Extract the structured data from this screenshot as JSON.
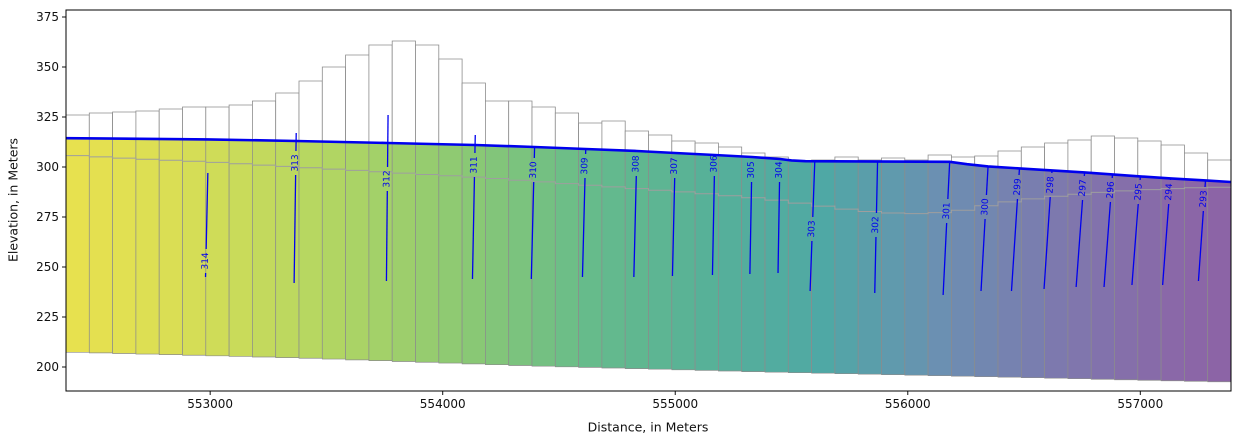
{
  "chart_data": {
    "type": "area",
    "title": "",
    "xlabel": "Distance, in Meters",
    "ylabel": "Elevation, in Meters",
    "xlim": [
      552380,
      557390
    ],
    "ylim": [
      188,
      378.5
    ],
    "xticks": [
      553000,
      554000,
      555000,
      556000,
      557000
    ],
    "yticks": [
      200,
      225,
      250,
      275,
      300,
      325,
      350,
      375
    ],
    "grid": false,
    "legend": "none",
    "description": "Groundwater model cross-section: colored saturated cells (yellow high head to purple low head), white unsaturated cells above the blue water table, blue head contours labeled 293-314",
    "colors": {
      "contour": "#0000ee",
      "water_table": "#0000ee",
      "cell_edge": "#8c8c8c",
      "boundary_line": "#9e9e9e",
      "frame": "#000000",
      "unsaturated_fill": "#ffffff"
    },
    "colormap": [
      [
        "0",
        "#8d63a5"
      ],
      [
        "0.05",
        "#8a68a8"
      ],
      [
        "0.15",
        "#7d79ae"
      ],
      [
        "0.25",
        "#6b90b2"
      ],
      [
        "0.35",
        "#4fa8a5"
      ],
      [
        "0.45",
        "#57b198"
      ],
      [
        "0.55",
        "#66bb8b"
      ],
      [
        "0.66",
        "#8cc973"
      ],
      [
        "0.78",
        "#b4d662"
      ],
      [
        "0.9",
        "#d8de55"
      ],
      [
        "1",
        "#e9e14e"
      ]
    ],
    "n_columns": 50,
    "land_surface": [
      326,
      327,
      327.5,
      328,
      329,
      330,
      330,
      331,
      333,
      337,
      343,
      350,
      356,
      361,
      363,
      361,
      354,
      342,
      333,
      333,
      330,
      327,
      322,
      323,
      318,
      316,
      313,
      312,
      310,
      307,
      305,
      303.5,
      303.5,
      305,
      303.5,
      304.5,
      303.5,
      306,
      305,
      305.5,
      308,
      310,
      312,
      313.5,
      315.5,
      314.5,
      313,
      311,
      307,
      303.5
    ],
    "water_table": [
      [
        552380,
        314.4
      ],
      [
        552990,
        313.8
      ],
      [
        553370,
        313
      ],
      [
        553765,
        312
      ],
      [
        554140,
        311
      ],
      [
        554395,
        310
      ],
      [
        554615,
        309
      ],
      [
        554835,
        308
      ],
      [
        555000,
        307
      ],
      [
        555170,
        306
      ],
      [
        555330,
        305
      ],
      [
        555450,
        304
      ],
      [
        555500,
        303.3
      ],
      [
        555560,
        302.9
      ],
      [
        556180,
        302.6
      ],
      [
        556255,
        301.4
      ],
      [
        556345,
        300.3
      ],
      [
        556480,
        299.3
      ],
      [
        556620,
        298.3
      ],
      [
        556760,
        297.3
      ],
      [
        556880,
        296.3
      ],
      [
        557000,
        295.3
      ],
      [
        557130,
        294.3
      ],
      [
        557280,
        293.3
      ],
      [
        557390,
        292.5
      ]
    ],
    "layer_boundary": [
      [
        552380,
        306
      ],
      [
        552700,
        304
      ],
      [
        553000,
        302.5
      ],
      [
        553300,
        300.5
      ],
      [
        553600,
        298.5
      ],
      [
        553900,
        296.5
      ],
      [
        554200,
        294.5
      ],
      [
        554500,
        292
      ],
      [
        554800,
        289.5
      ],
      [
        555100,
        287
      ],
      [
        555400,
        284
      ],
      [
        555600,
        281
      ],
      [
        555800,
        278
      ],
      [
        556000,
        276.5
      ],
      [
        556200,
        277.5
      ],
      [
        556400,
        282
      ],
      [
        556600,
        285
      ],
      [
        556800,
        287
      ],
      [
        557000,
        288.5
      ],
      [
        557200,
        289.5
      ],
      [
        557390,
        290
      ]
    ],
    "bottom": [
      [
        552380,
        207.5
      ],
      [
        553400,
        204.5
      ],
      [
        554400,
        200.5
      ],
      [
        555400,
        197.5
      ],
      [
        556400,
        195
      ],
      [
        557390,
        192.5
      ]
    ],
    "contours": [
      {
        "label": "314",
        "x": 552990,
        "z_top": 297,
        "z_bot": 245,
        "lean": -10,
        "label_z": 253
      },
      {
        "label": "313",
        "x": 553370,
        "z_top": 317,
        "z_bot": 242,
        "lean": -9,
        "label_z": 302
      },
      {
        "label": "312",
        "x": 553765,
        "z_top": 326,
        "z_bot": 243,
        "lean": -7,
        "label_z": 294
      },
      {
        "label": "311",
        "x": 554140,
        "z_top": 316,
        "z_bot": 244,
        "lean": -12,
        "label_z": 301
      },
      {
        "label": "310",
        "x": 554395,
        "z_top": 309.5,
        "z_bot": 244,
        "lean": -14,
        "label_z": 298.5
      },
      {
        "label": "309",
        "x": 554615,
        "z_top": 308.5,
        "z_bot": 245,
        "lean": -14,
        "label_z": 300.5
      },
      {
        "label": "308",
        "x": 554835,
        "z_top": 307.5,
        "z_bot": 245,
        "lean": -13,
        "label_z": 301.5
      },
      {
        "label": "307",
        "x": 555000,
        "z_top": 306.5,
        "z_bot": 245.5,
        "lean": -12,
        "label_z": 300.5
      },
      {
        "label": "306",
        "x": 555170,
        "z_top": 305.5,
        "z_bot": 246,
        "lean": -10,
        "label_z": 301.5
      },
      {
        "label": "305",
        "x": 555330,
        "z_top": 304.5,
        "z_bot": 246.5,
        "lean": -9,
        "label_z": 298.5
      },
      {
        "label": "304",
        "x": 555450,
        "z_top": 303.5,
        "z_bot": 247,
        "lean": -8,
        "label_z": 298.5
      },
      {
        "label": "303",
        "x": 555600,
        "z_top": 302.5,
        "z_bot": 238,
        "lean": -20,
        "label_z": 269
      },
      {
        "label": "302",
        "x": 555870,
        "z_top": 302.3,
        "z_bot": 237,
        "lean": -12,
        "label_z": 271
      },
      {
        "label": "301",
        "x": 556180,
        "z_top": 302.2,
        "z_bot": 236,
        "lean": -28,
        "label_z": 278
      },
      {
        "label": "300",
        "x": 556345,
        "z_top": 299.8,
        "z_bot": 238,
        "lean": -30,
        "label_z": 280
      },
      {
        "label": "299",
        "x": 556480,
        "z_top": 298.8,
        "z_bot": 238,
        "lean": -34,
        "label_z": 290
      },
      {
        "label": "298",
        "x": 556620,
        "z_top": 297.8,
        "z_bot": 239,
        "lean": -34,
        "label_z": 291
      },
      {
        "label": "297",
        "x": 556760,
        "z_top": 296.8,
        "z_bot": 240,
        "lean": -36,
        "label_z": 289.5
      },
      {
        "label": "296",
        "x": 556880,
        "z_top": 295.8,
        "z_bot": 240,
        "lean": -36,
        "label_z": 288.5
      },
      {
        "label": "295",
        "x": 557000,
        "z_top": 294.8,
        "z_bot": 241,
        "lean": -36,
        "label_z": 287.5
      },
      {
        "label": "294",
        "x": 557130,
        "z_top": 293.8,
        "z_bot": 241,
        "lean": -34,
        "label_z": 287.5
      },
      {
        "label": "293",
        "x": 557280,
        "z_top": 292.8,
        "z_bot": 243,
        "lean": -30,
        "label_z": 284
      }
    ]
  }
}
